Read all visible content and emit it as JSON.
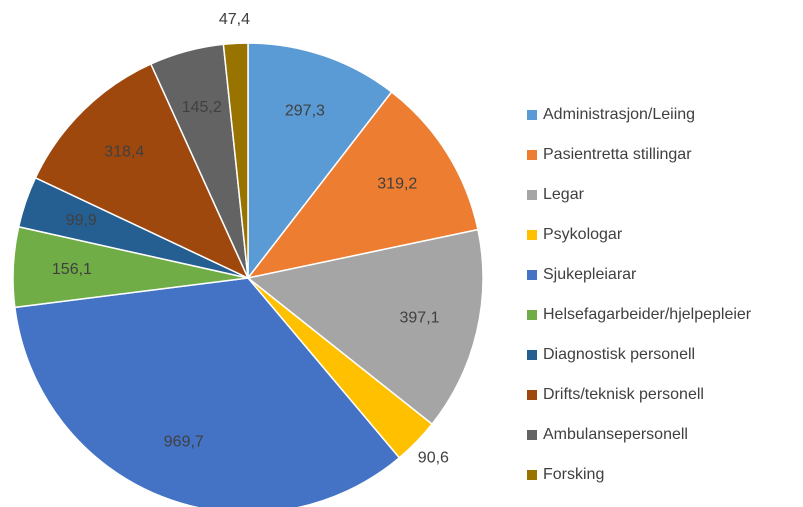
{
  "chart_data": {
    "type": "pie",
    "categories": [
      "Administrasjon/Leiing",
      "Pasientretta stillingar",
      "Legar",
      "Psykologar",
      "Sjukepleiarar",
      "Helsefagarbeider/hjelpepleier",
      "Diagnostisk personell",
      "Drifts/teknisk personell",
      "Ambulansepersonell",
      "Forsking"
    ],
    "values": [
      297.3,
      319.2,
      397.1,
      90.6,
      969.7,
      156.1,
      99.9,
      318.4,
      145.2,
      47.4
    ],
    "value_labels": [
      "297,3",
      "319,2",
      "397,1",
      "90,6",
      "969,7",
      "156,1",
      "99,9",
      "318,4",
      "145,2",
      "47,4"
    ],
    "colors": [
      "#5b9bd5",
      "#ed7d31",
      "#a5a5a5",
      "#ffc000",
      "#4472c4",
      "#70ad47",
      "#255e91",
      "#9e480e",
      "#636363",
      "#997300"
    ],
    "legend": "right"
  }
}
